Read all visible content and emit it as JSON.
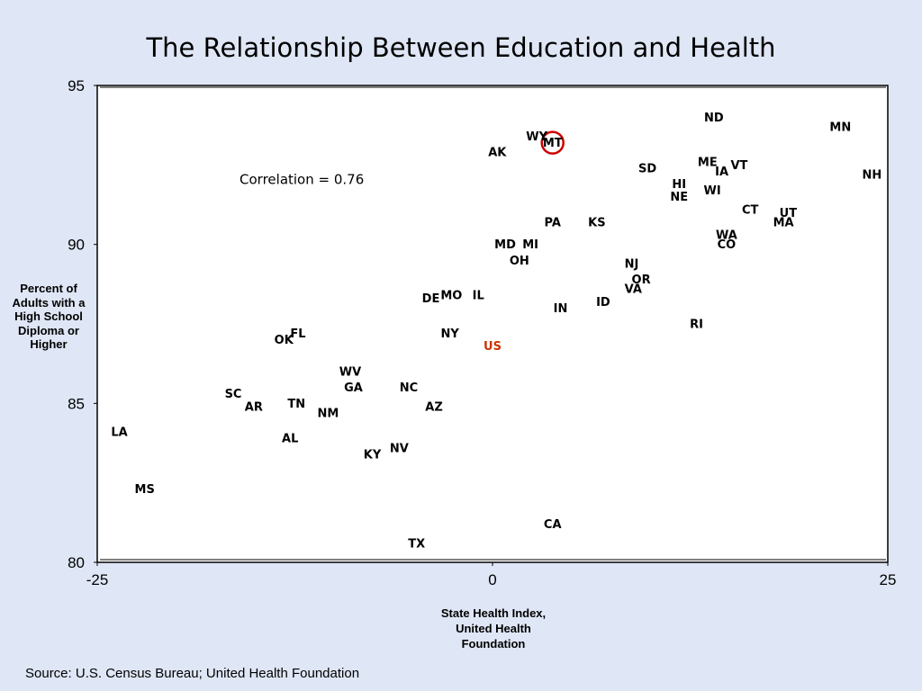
{
  "title": "The Relationship Between Education and Health",
  "source": "Source:  U.S. Census Bureau; United Health Foundation",
  "chart_data": {
    "type": "scatter",
    "title": "The Relationship Between Education and Health",
    "xlabel": "State Health Index, United Health Foundation",
    "xlabel_lines": [
      "State Health Index,",
      "United Health",
      "Foundation"
    ],
    "ylabel": "Percent of Adults with a High School Diploma or Higher",
    "ylabel_lines": [
      "Percent of",
      "Adults with a",
      "High School",
      "Diploma or",
      "Higher"
    ],
    "xlim": [
      -25,
      25
    ],
    "ylim": [
      80,
      95
    ],
    "xticks": [
      -25,
      0,
      25
    ],
    "yticks": [
      80,
      85,
      90,
      95
    ],
    "grid": false,
    "legend": "none",
    "annotation": "Correlation = 0.76",
    "highlight": "MT",
    "colors": {
      "point_label": "#000000",
      "us_label": "#cc3300",
      "circle": "#cc0000",
      "plot_bg": "#ffffff",
      "page_bg": "#dfe6f5"
    },
    "points": [
      {
        "label": "ND",
        "x": 14.0,
        "y": 94.0
      },
      {
        "label": "MN",
        "x": 22.0,
        "y": 93.7
      },
      {
        "label": "WY",
        "x": 2.8,
        "y": 93.4
      },
      {
        "label": "MT",
        "x": 3.8,
        "y": 93.2
      },
      {
        "label": "AK",
        "x": 0.3,
        "y": 92.9
      },
      {
        "label": "ME",
        "x": 13.6,
        "y": 92.6
      },
      {
        "label": "VT",
        "x": 15.6,
        "y": 92.5
      },
      {
        "label": "SD",
        "x": 9.8,
        "y": 92.4
      },
      {
        "label": "IA",
        "x": 14.5,
        "y": 92.3
      },
      {
        "label": "NH",
        "x": 24.0,
        "y": 92.2
      },
      {
        "label": "HI",
        "x": 11.8,
        "y": 91.9
      },
      {
        "label": "WI",
        "x": 13.9,
        "y": 91.7
      },
      {
        "label": "NE",
        "x": 11.8,
        "y": 91.5
      },
      {
        "label": "CT",
        "x": 16.3,
        "y": 91.1
      },
      {
        "label": "UT",
        "x": 18.7,
        "y": 91.0
      },
      {
        "label": "KS",
        "x": 6.6,
        "y": 90.7
      },
      {
        "label": "PA",
        "x": 3.8,
        "y": 90.7
      },
      {
        "label": "MA",
        "x": 18.4,
        "y": 90.7
      },
      {
        "label": "WA",
        "x": 14.8,
        "y": 90.3
      },
      {
        "label": "CO",
        "x": 14.8,
        "y": 90.0
      },
      {
        "label": "MI",
        "x": 2.4,
        "y": 90.0
      },
      {
        "label": "MD",
        "x": 0.8,
        "y": 90.0
      },
      {
        "label": "OH",
        "x": 1.7,
        "y": 89.5
      },
      {
        "label": "NJ",
        "x": 8.8,
        "y": 89.4
      },
      {
        "label": "OR",
        "x": 9.4,
        "y": 88.9
      },
      {
        "label": "VA",
        "x": 8.9,
        "y": 88.6
      },
      {
        "label": "MO",
        "x": -2.6,
        "y": 88.4
      },
      {
        "label": "IL",
        "x": -0.9,
        "y": 88.4
      },
      {
        "label": "DE",
        "x": -3.9,
        "y": 88.3
      },
      {
        "label": "ID",
        "x": 7.0,
        "y": 88.2
      },
      {
        "label": "IN",
        "x": 4.3,
        "y": 88.0
      },
      {
        "label": "RI",
        "x": 12.9,
        "y": 87.5
      },
      {
        "label": "FL",
        "x": -12.3,
        "y": 87.2
      },
      {
        "label": "NY",
        "x": -2.7,
        "y": 87.2
      },
      {
        "label": "OK",
        "x": -13.2,
        "y": 87.0
      },
      {
        "label": "US",
        "x": 0.0,
        "y": 86.8
      },
      {
        "label": "WV",
        "x": -9.0,
        "y": 86.0
      },
      {
        "label": "GA",
        "x": -8.8,
        "y": 85.5
      },
      {
        "label": "NC",
        "x": -5.3,
        "y": 85.5
      },
      {
        "label": "SC",
        "x": -16.4,
        "y": 85.3
      },
      {
        "label": "TN",
        "x": -12.4,
        "y": 85.0
      },
      {
        "label": "AR",
        "x": -15.1,
        "y": 84.9
      },
      {
        "label": "AZ",
        "x": -3.7,
        "y": 84.9
      },
      {
        "label": "NM",
        "x": -10.4,
        "y": 84.7
      },
      {
        "label": "LA",
        "x": -23.6,
        "y": 84.1
      },
      {
        "label": "AL",
        "x": -12.8,
        "y": 83.9
      },
      {
        "label": "NV",
        "x": -5.9,
        "y": 83.6
      },
      {
        "label": "KY",
        "x": -7.6,
        "y": 83.4
      },
      {
        "label": "MS",
        "x": -22.0,
        "y": 82.3
      },
      {
        "label": "CA",
        "x": 3.8,
        "y": 81.2
      },
      {
        "label": "TX",
        "x": -4.8,
        "y": 80.6
      }
    ]
  }
}
